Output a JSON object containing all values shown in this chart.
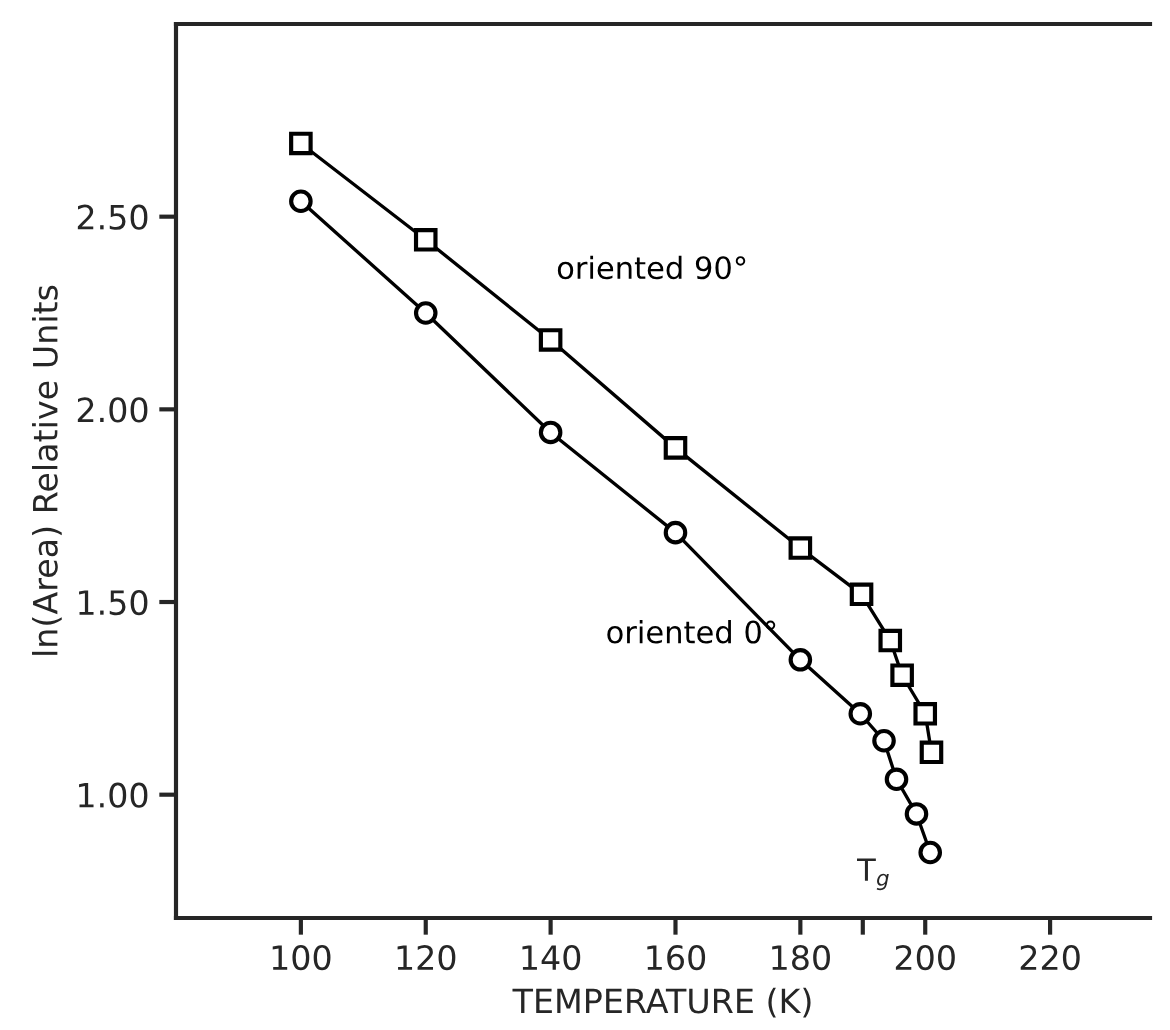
{
  "chart_data": {
    "type": "line",
    "xlabel": "TEMPERATURE (K)",
    "ylabel": "ln(Area) Relative Units",
    "series": [
      {
        "name": "oriented 90°",
        "color": "#000000",
        "marker": "square",
        "x": [
          100,
          120,
          140,
          160,
          180,
          189.8,
          194.4,
          196.3,
          200,
          201
        ],
        "values": [
          2.69,
          2.44,
          2.18,
          1.9,
          1.64,
          1.52,
          1.4,
          1.31,
          1.21,
          1.11
        ]
      },
      {
        "name": "oriented 0°",
        "color": "#000000",
        "marker": "circle",
        "x": [
          100,
          120,
          140,
          160,
          180,
          189.6,
          193.4,
          195.4,
          198.6,
          200.8
        ],
        "values": [
          2.54,
          2.25,
          1.94,
          1.68,
          1.35,
          1.21,
          1.14,
          1.04,
          0.95,
          0.85
        ]
      }
    ],
    "xlim": [
      80,
      236
    ],
    "ylim": [
      0.68,
      3.0
    ],
    "xticks": [
      100,
      120,
      140,
      160,
      180,
      {
        "value": 190,
        "label": null
      },
      200,
      220
    ],
    "yticks": [
      {
        "value": 1.0,
        "label": "1.00"
      },
      {
        "value": 1.5,
        "label": "1.50"
      },
      {
        "value": 2.0,
        "label": "2.00"
      },
      {
        "value": 2.5,
        "label": "2.50"
      }
    ],
    "annotations": [
      "T$_{g}$"
    ],
    "grid": false,
    "legend": false,
    "line_style": "solid"
  }
}
